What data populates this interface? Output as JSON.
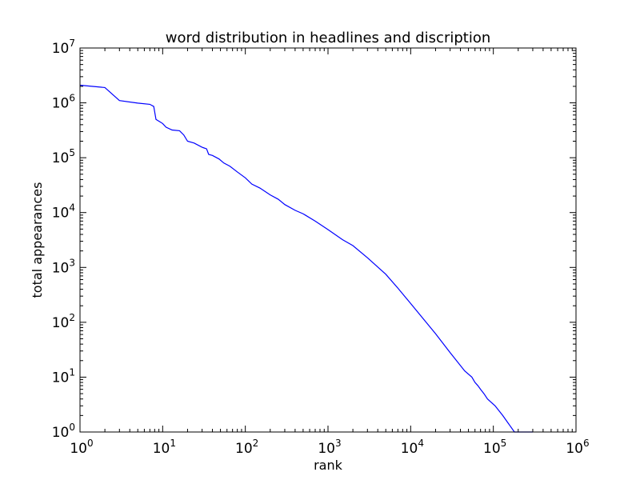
{
  "chart_data": {
    "type": "line",
    "title": "word distribution in headlines and discription",
    "xlabel": "rank",
    "ylabel": "total appearances",
    "xscale": "log",
    "yscale": "log",
    "xlim": [
      1,
      1000000
    ],
    "ylim": [
      1,
      10000000
    ],
    "grid": false,
    "x_ticks": [
      {
        "base": "10",
        "exp": "0",
        "value": 1
      },
      {
        "base": "10",
        "exp": "1",
        "value": 10
      },
      {
        "base": "10",
        "exp": "2",
        "value": 100
      },
      {
        "base": "10",
        "exp": "3",
        "value": 1000
      },
      {
        "base": "10",
        "exp": "4",
        "value": 10000
      },
      {
        "base": "10",
        "exp": "5",
        "value": 100000
      },
      {
        "base": "10",
        "exp": "6",
        "value": 1000000
      }
    ],
    "y_ticks": [
      {
        "base": "10",
        "exp": "0",
        "value": 1
      },
      {
        "base": "10",
        "exp": "1",
        "value": 10
      },
      {
        "base": "10",
        "exp": "2",
        "value": 100
      },
      {
        "base": "10",
        "exp": "3",
        "value": 1000
      },
      {
        "base": "10",
        "exp": "4",
        "value": 10000
      },
      {
        "base": "10",
        "exp": "5",
        "value": 100000
      },
      {
        "base": "10",
        "exp": "6",
        "value": 1000000
      },
      {
        "base": "10",
        "exp": "7",
        "value": 10000000
      }
    ],
    "series": [
      {
        "color": "#0000ff",
        "points": [
          [
            1,
            2100000
          ],
          [
            2,
            1900000
          ],
          [
            3,
            1100000
          ],
          [
            5,
            990000
          ],
          [
            7,
            940000
          ],
          [
            7.8,
            860000
          ],
          [
            8.3,
            500000
          ],
          [
            9.3,
            450000
          ],
          [
            10,
            420000
          ],
          [
            11,
            360000
          ],
          [
            13,
            320000
          ],
          [
            16,
            310000
          ],
          [
            18,
            260000
          ],
          [
            20,
            200000
          ],
          [
            24,
            185000
          ],
          [
            30,
            155000
          ],
          [
            34,
            145000
          ],
          [
            36,
            115000
          ],
          [
            40,
            110000
          ],
          [
            48,
            95000
          ],
          [
            55,
            80000
          ],
          [
            65,
            70000
          ],
          [
            80,
            55000
          ],
          [
            100,
            43000
          ],
          [
            120,
            33000
          ],
          [
            150,
            28000
          ],
          [
            200,
            21000
          ],
          [
            250,
            17500
          ],
          [
            300,
            14000
          ],
          [
            400,
            11000
          ],
          [
            500,
            9500
          ],
          [
            700,
            7000
          ],
          [
            1000,
            4900
          ],
          [
            1500,
            3200
          ],
          [
            2000,
            2500
          ],
          [
            3000,
            1500
          ],
          [
            5000,
            750
          ],
          [
            7000,
            420
          ],
          [
            10000,
            220
          ],
          [
            20000,
            62
          ],
          [
            30000,
            28
          ],
          [
            45000,
            13
          ],
          [
            55000,
            10
          ],
          [
            60000,
            8
          ],
          [
            65000,
            7
          ],
          [
            70000,
            6
          ],
          [
            77000,
            5
          ],
          [
            85000,
            4
          ],
          [
            105000,
            3
          ],
          [
            130000,
            2
          ],
          [
            180000,
            1
          ],
          [
            300000,
            1
          ]
        ]
      }
    ]
  }
}
